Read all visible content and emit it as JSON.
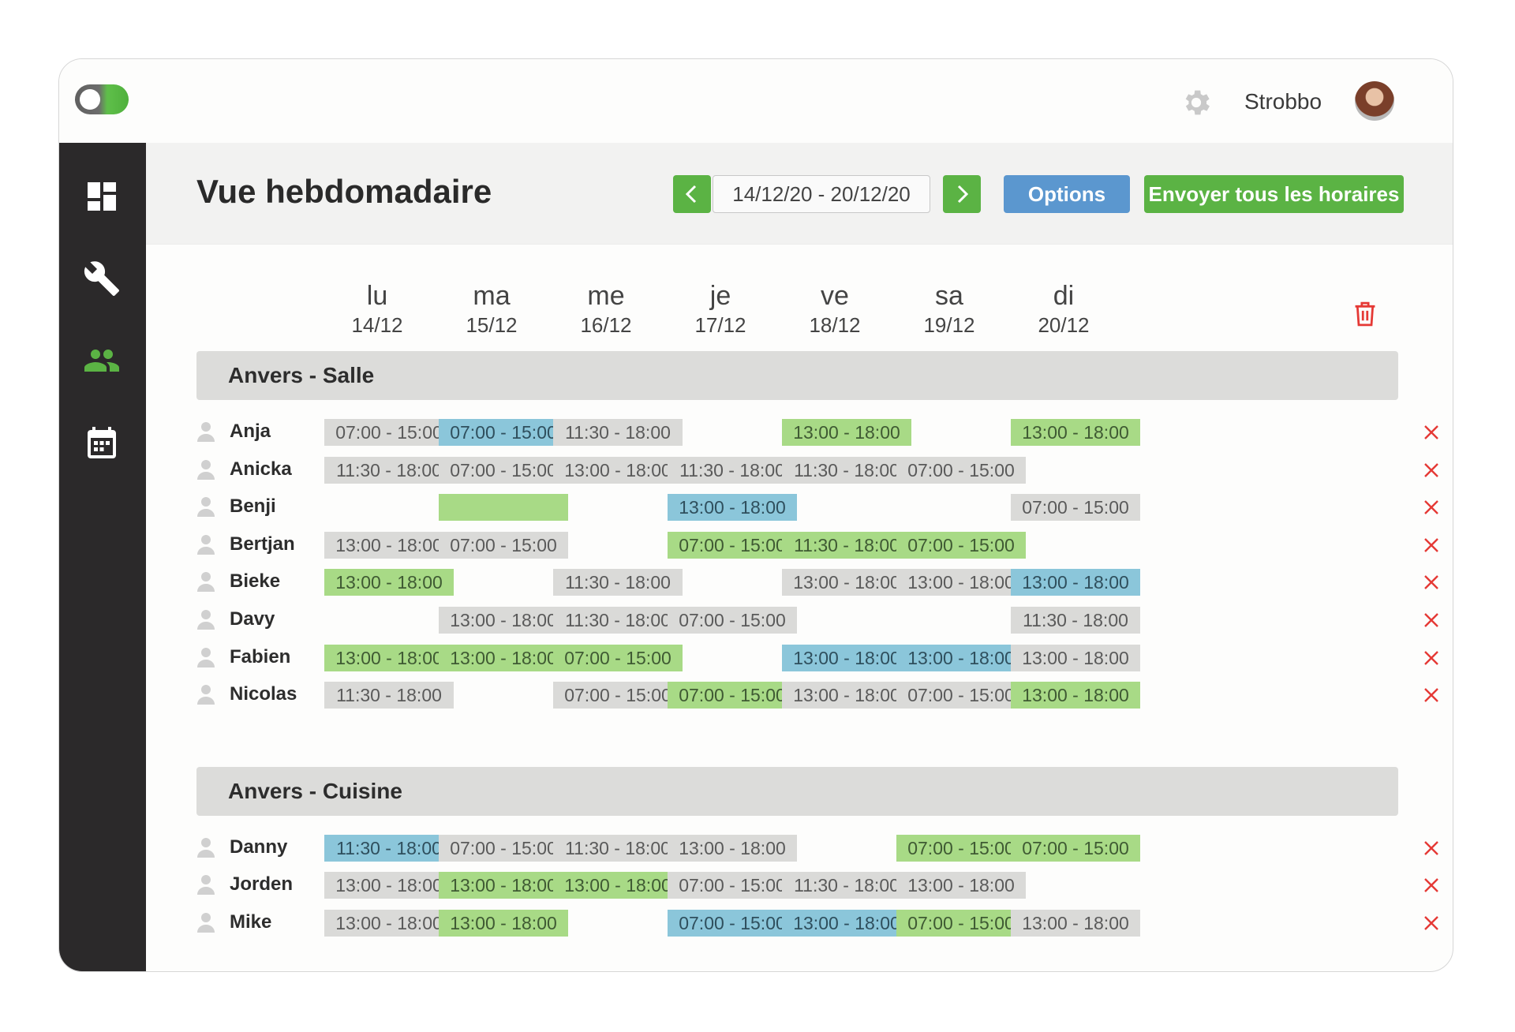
{
  "app": {
    "user_name": "Strobbo",
    "title": "Vue hebdomadaire",
    "date_range": "14/12/20 - 20/12/20",
    "options_label": "Options",
    "send_label": "Envoyer tous les horaires"
  },
  "sidebar": [
    {
      "icon": "dashboard-icon"
    },
    {
      "icon": "wrench-icon"
    },
    {
      "icon": "users-icon",
      "active": true
    },
    {
      "icon": "calendar-icon"
    }
  ],
  "days": [
    {
      "name": "lu",
      "date": "14/12"
    },
    {
      "name": "ma",
      "date": "15/12"
    },
    {
      "name": "me",
      "date": "16/12"
    },
    {
      "name": "je",
      "date": "17/12"
    },
    {
      "name": "ve",
      "date": "18/12"
    },
    {
      "name": "sa",
      "date": "19/12"
    },
    {
      "name": "di",
      "date": "20/12"
    }
  ],
  "colors": {
    "green": "#5bb344",
    "blue": "#5b97cf",
    "red": "#e53935",
    "shift_gray": "#dadad8",
    "shift_green": "#a8da86",
    "shift_blue": "#8bc6da"
  },
  "sections": [
    {
      "title": "Anvers - Salle",
      "rows": [
        {
          "name": "Anja",
          "shifts": [
            {
              "t": "07:00 - 15:00",
              "c": "gray"
            },
            {
              "t": "07:00 - 15:00",
              "c": "blue"
            },
            {
              "t": "11:30 - 18:00",
              "c": "gray"
            },
            null,
            {
              "t": "13:00 - 18:00",
              "c": "green"
            },
            null,
            {
              "t": "13:00 - 18:00",
              "c": "green"
            }
          ]
        },
        {
          "name": "Anicka",
          "shifts": [
            {
              "t": "11:30 - 18:00",
              "c": "gray"
            },
            {
              "t": "07:00 - 15:00",
              "c": "gray"
            },
            {
              "t": "13:00 - 18:00",
              "c": "gray"
            },
            {
              "t": "11:30 - 18:00",
              "c": "gray"
            },
            {
              "t": "11:30 - 18:00",
              "c": "gray"
            },
            {
              "t": "07:00 - 15:00",
              "c": "gray"
            },
            null
          ]
        },
        {
          "name": "Benji",
          "shifts": [
            null,
            {
              "t": "",
              "c": "green"
            },
            null,
            {
              "t": "13:00 - 18:00",
              "c": "blue"
            },
            null,
            null,
            {
              "t": "07:00 - 15:00",
              "c": "gray"
            }
          ]
        },
        {
          "name": "Bertjan",
          "shifts": [
            {
              "t": "13:00 - 18:00",
              "c": "gray"
            },
            {
              "t": "07:00 - 15:00",
              "c": "gray"
            },
            null,
            {
              "t": "07:00 - 15:00",
              "c": "green"
            },
            {
              "t": "11:30 - 18:00",
              "c": "green"
            },
            {
              "t": "07:00 - 15:00",
              "c": "green"
            },
            null
          ]
        },
        {
          "name": "Bieke",
          "shifts": [
            {
              "t": "13:00 - 18:00",
              "c": "green"
            },
            null,
            {
              "t": "11:30 - 18:00",
              "c": "gray"
            },
            null,
            {
              "t": "13:00 - 18:00",
              "c": "gray"
            },
            {
              "t": "13:00 - 18:00",
              "c": "gray"
            },
            {
              "t": "13:00 - 18:00",
              "c": "blue"
            }
          ]
        },
        {
          "name": "Davy",
          "shifts": [
            null,
            {
              "t": "13:00 - 18:00",
              "c": "gray"
            },
            {
              "t": "11:30 - 18:00",
              "c": "gray"
            },
            {
              "t": "07:00 - 15:00",
              "c": "gray"
            },
            null,
            null,
            {
              "t": "11:30 - 18:00",
              "c": "gray"
            }
          ]
        },
        {
          "name": "Fabien",
          "shifts": [
            {
              "t": "13:00 - 18:00",
              "c": "green"
            },
            {
              "t": "13:00 - 18:00",
              "c": "green"
            },
            {
              "t": "07:00 - 15:00",
              "c": "green"
            },
            null,
            {
              "t": "13:00 - 18:00",
              "c": "blue"
            },
            {
              "t": "13:00 - 18:00",
              "c": "blue"
            },
            {
              "t": "13:00 - 18:00",
              "c": "gray"
            }
          ]
        },
        {
          "name": "Nicolas",
          "shifts": [
            {
              "t": "11:30 - 18:00",
              "c": "gray"
            },
            null,
            {
              "t": "07:00 - 15:00",
              "c": "gray"
            },
            {
              "t": "07:00 - 15:00",
              "c": "green"
            },
            {
              "t": "13:00 - 18:00",
              "c": "gray"
            },
            {
              "t": "07:00 - 15:00",
              "c": "gray"
            },
            {
              "t": "13:00 - 18:00",
              "c": "green"
            }
          ]
        }
      ]
    },
    {
      "title": "Anvers - Cuisine",
      "rows": [
        {
          "name": "Danny",
          "shifts": [
            {
              "t": "11:30 - 18:00",
              "c": "blue"
            },
            {
              "t": "07:00 - 15:00",
              "c": "gray"
            },
            {
              "t": "11:30 - 18:00",
              "c": "gray"
            },
            {
              "t": "13:00 - 18:00",
              "c": "gray"
            },
            null,
            {
              "t": "07:00 - 15:00",
              "c": "green"
            },
            {
              "t": "07:00 - 15:00",
              "c": "green"
            }
          ]
        },
        {
          "name": "Jorden",
          "shifts": [
            {
              "t": "13:00 - 18:00",
              "c": "gray"
            },
            {
              "t": "13:00 - 18:00",
              "c": "green"
            },
            {
              "t": "13:00 - 18:00",
              "c": "green"
            },
            {
              "t": "07:00 - 15:00",
              "c": "gray"
            },
            {
              "t": "11:30 - 18:00",
              "c": "gray"
            },
            {
              "t": "13:00 - 18:00",
              "c": "gray"
            },
            null
          ]
        },
        {
          "name": "Mike",
          "shifts": [
            {
              "t": "13:00 - 18:00",
              "c": "gray"
            },
            {
              "t": "13:00 - 18:00",
              "c": "green"
            },
            null,
            {
              "t": "07:00 - 15:00",
              "c": "blue"
            },
            {
              "t": "13:00 - 18:00",
              "c": "blue"
            },
            {
              "t": "07:00 - 15:00",
              "c": "green"
            },
            {
              "t": "13:00 - 18:00",
              "c": "gray"
            }
          ]
        }
      ]
    }
  ]
}
